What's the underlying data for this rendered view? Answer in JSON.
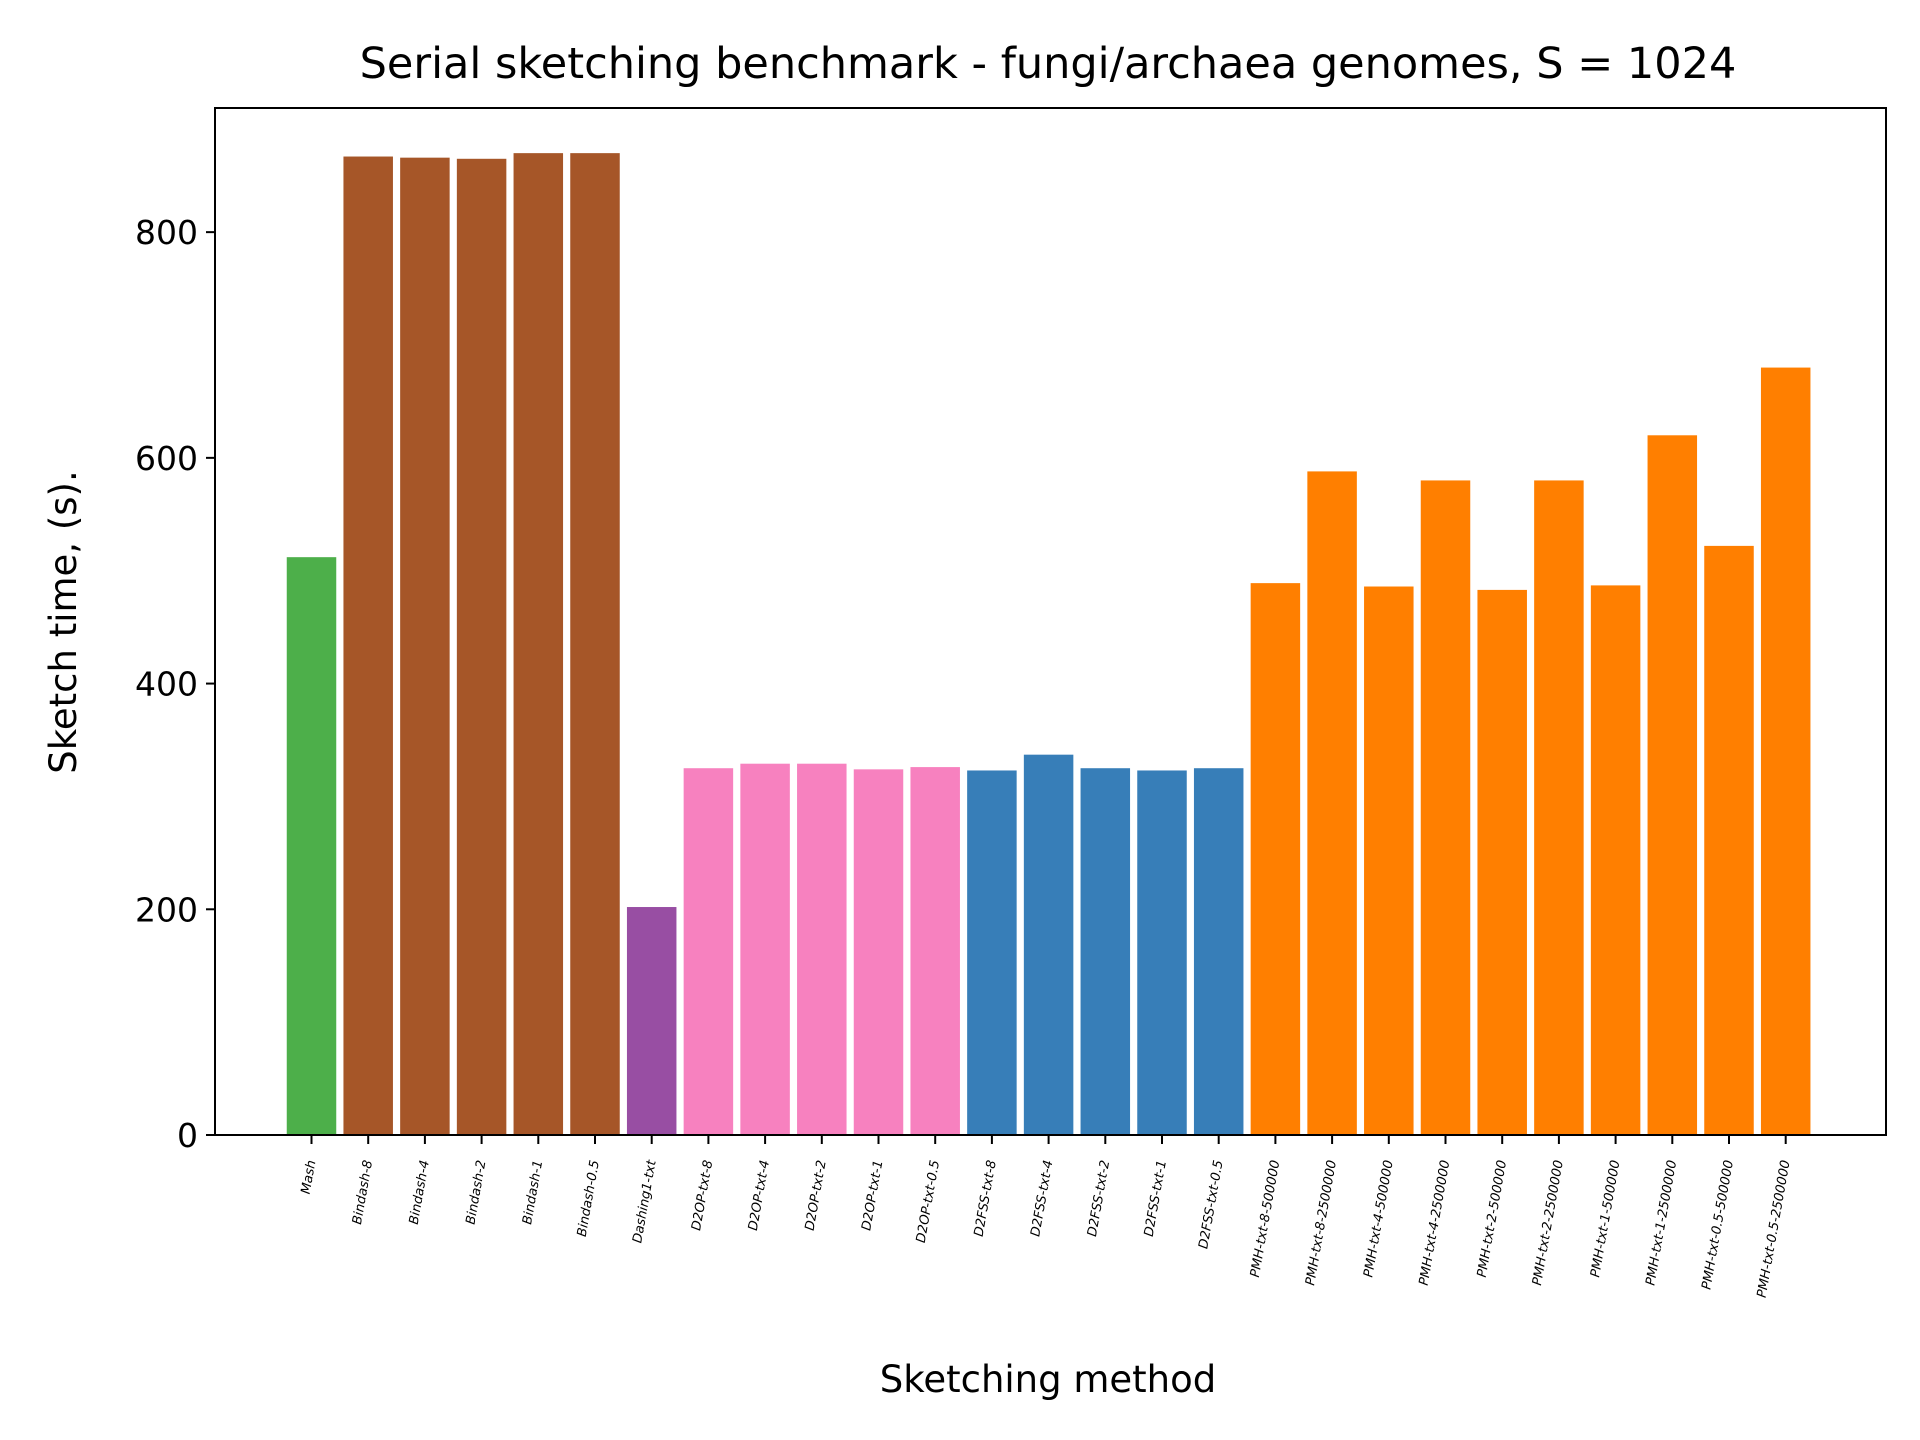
{
  "chart_data": {
    "type": "bar",
    "title": "Serial sketching benchmark - fungi/archaea genomes, S = 1024",
    "xlabel": "Sketching method",
    "ylabel": "Sketch time, (s).",
    "ylim": [
      0,
      910
    ],
    "yticks": [
      0,
      200,
      400,
      600,
      800
    ],
    "grid": false,
    "categories": [
      "Mash",
      "Bindash-8",
      "Bindash-4",
      "Bindash-2",
      "Bindash-1",
      "Bindash-0.5",
      "Dashing1-txt",
      "D2OP-txt-8",
      "D2OP-txt-4",
      "D2OP-txt-2",
      "D2OP-txt-1",
      "D2OP-txt-0.5",
      "D2FSS-txt-8",
      "D2FSS-txt-4",
      "D2FSS-txt-2",
      "D2FSS-txt-1",
      "D2FSS-txt-0.5",
      "PMH-txt-8-500000",
      "PMH-txt-8-2500000",
      "PMH-txt-4-500000",
      "PMH-txt-4-2500000",
      "PMH-txt-2-500000",
      "PMH-txt-2-2500000",
      "PMH-txt-1-500000",
      "PMH-txt-1-2500000",
      "PMH-txt-0.5-500000",
      "PMH-txt-0.5-2500000"
    ],
    "values": [
      512,
      867,
      866,
      865,
      870,
      870,
      202,
      325,
      329,
      329,
      324,
      326,
      323,
      337,
      325,
      323,
      325,
      489,
      588,
      486,
      580,
      483,
      580,
      487,
      620,
      522,
      680
    ],
    "colors": [
      "#4daf4a",
      "#a65628",
      "#a65628",
      "#a65628",
      "#a65628",
      "#a65628",
      "#984ea3",
      "#f781bf",
      "#f781bf",
      "#f781bf",
      "#f781bf",
      "#f781bf",
      "#377eb8",
      "#377eb8",
      "#377eb8",
      "#377eb8",
      "#377eb8",
      "#ff7f00",
      "#ff7f00",
      "#ff7f00",
      "#ff7f00",
      "#ff7f00",
      "#ff7f00",
      "#ff7f00",
      "#ff7f00",
      "#ff7f00",
      "#ff7f00"
    ]
  }
}
